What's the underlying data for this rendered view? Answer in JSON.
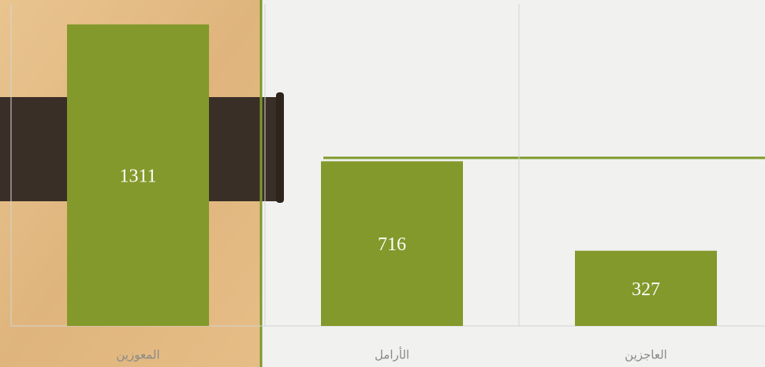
{
  "chart_data": {
    "type": "bar",
    "categories": [
      "المعوزين",
      "الأرامل",
      "العاجزين"
    ],
    "values": [
      1311,
      716,
      327
    ],
    "color": "#84992b",
    "ylim": [
      0,
      1400
    ],
    "grid": true
  }
}
